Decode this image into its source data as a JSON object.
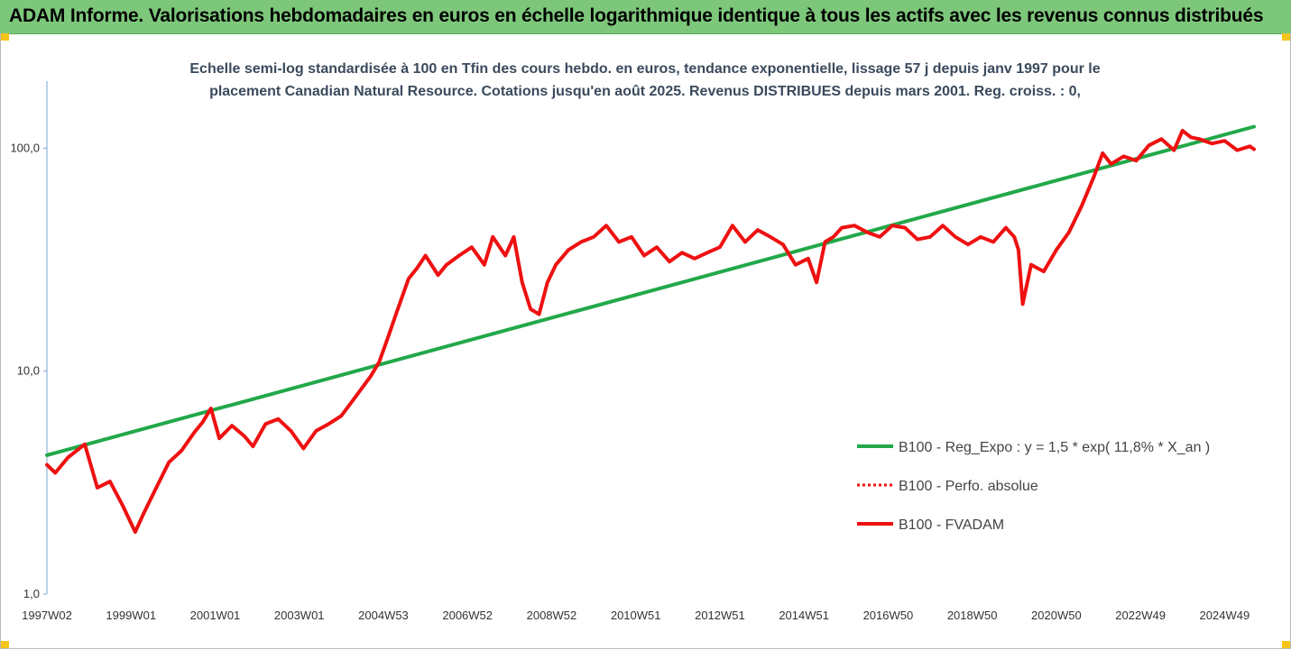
{
  "banner": {
    "title": "ADAM Informe. Valorisations hebdomadaires en euros en échelle logarithmique identique à tous les actifs avec les revenus connus distribués"
  },
  "chart_data": {
    "type": "line",
    "title_line1": "Echelle semi-log standardisée à 100 en Tfin des cours hebdo. en euros, tendance exponentielle, lissage 57 j depuis janv 1997 pour le",
    "title_line2": "placement Canadian Natural Resource. Cotations jusqu'en août 2025. Revenus DISTRIBUES depuis mars 2001. Reg. croiss. : 0,",
    "y_scale": "log",
    "ylim": [
      1,
      200
    ],
    "y_ticks": [
      1,
      10,
      100
    ],
    "y_tick_labels": [
      "1,0",
      "10,0",
      "100,0"
    ],
    "xlim": [
      1997.0,
      2025.7
    ],
    "x_ticks": [
      1997.0,
      1999.0,
      2001.0,
      2003.0,
      2005.0,
      2007.0,
      2009.0,
      2011.0,
      2013.0,
      2015.0,
      2017.0,
      2019.0,
      2021.0,
      2023.0,
      2025.0
    ],
    "x_tick_labels": [
      "1997W02",
      "1999W01",
      "2001W01",
      "2003W01",
      "2004W53",
      "2006W52",
      "2008W52",
      "2010W51",
      "2012W51",
      "2014W51",
      "2016W50",
      "2018W50",
      "2020W50",
      "2022W49",
      "2024W49"
    ],
    "grid": false,
    "legend_position": "right-middle",
    "series": [
      {
        "name": "B100 - Reg_Expo : y = 1,5 * exp( 11,8% *  X_an )",
        "color": "#22a84a",
        "style": "solid",
        "x": [
          1997.0,
          2025.7
        ],
        "y": [
          4.2,
          125
        ]
      },
      {
        "name": "B100 - Perfo. absolue",
        "color": "#ee1111",
        "style": "dotted",
        "x": [],
        "y": []
      },
      {
        "name": "B100 - FVADAM",
        "color": "#ee1111",
        "style": "solid",
        "x": [
          1997.0,
          1997.2,
          1997.5,
          1997.9,
          1998.2,
          1998.5,
          1998.8,
          1999.1,
          1999.3,
          1999.6,
          1999.9,
          2000.2,
          2000.5,
          2000.7,
          2000.9,
          2001.1,
          2001.4,
          2001.7,
          2001.9,
          2002.2,
          2002.5,
          2002.8,
          2003.1,
          2003.4,
          2003.7,
          2004.0,
          2004.3,
          2004.7,
          2004.9,
          2005.1,
          2005.3,
          2005.6,
          2005.8,
          2006.0,
          2006.3,
          2006.5,
          2006.8,
          2007.1,
          2007.4,
          2007.6,
          2007.9,
          2008.1,
          2008.3,
          2008.5,
          2008.7,
          2008.9,
          2009.1,
          2009.4,
          2009.7,
          2010.0,
          2010.3,
          2010.6,
          2010.9,
          2011.2,
          2011.5,
          2011.8,
          2012.1,
          2012.4,
          2012.7,
          2013.0,
          2013.3,
          2013.6,
          2013.9,
          2014.2,
          2014.5,
          2014.8,
          2015.1,
          2015.3,
          2015.5,
          2015.7,
          2015.9,
          2016.2,
          2016.5,
          2016.8,
          2017.1,
          2017.4,
          2017.7,
          2018.0,
          2018.3,
          2018.6,
          2018.9,
          2019.2,
          2019.5,
          2019.8,
          2020.0,
          2020.1,
          2020.2,
          2020.4,
          2020.7,
          2021.0,
          2021.3,
          2021.6,
          2021.9,
          2022.1,
          2022.3,
          2022.6,
          2022.9,
          2023.2,
          2023.5,
          2023.8,
          2024.0,
          2024.2,
          2024.4,
          2024.7,
          2025.0,
          2025.3,
          2025.6,
          2025.7
        ],
        "y": [
          3.8,
          3.5,
          4.1,
          4.7,
          3.0,
          3.2,
          2.5,
          1.9,
          2.3,
          3.0,
          3.9,
          4.4,
          5.3,
          5.9,
          6.8,
          5.0,
          5.7,
          5.1,
          4.6,
          5.8,
          6.1,
          5.4,
          4.5,
          5.4,
          5.8,
          6.3,
          7.5,
          9.5,
          11.0,
          14.0,
          18.0,
          26.0,
          29.0,
          33.0,
          27.0,
          30.0,
          33.0,
          36.0,
          30.0,
          40.0,
          33.0,
          40.0,
          25.0,
          19.0,
          18.0,
          25.0,
          30.0,
          35.0,
          38.0,
          40.0,
          45.0,
          38.0,
          40.0,
          33.0,
          36.0,
          31.0,
          34.0,
          32.0,
          34.0,
          36.0,
          45.0,
          38.0,
          43.0,
          40.0,
          37.0,
          30.0,
          32.0,
          25.0,
          38.0,
          40.0,
          44.0,
          45.0,
          42.0,
          40.0,
          45.0,
          44.0,
          39.0,
          40.0,
          45.0,
          40.0,
          37.0,
          40.0,
          38.0,
          44.0,
          40.0,
          35.0,
          20.0,
          30.0,
          28.0,
          35.0,
          42.0,
          55.0,
          75.0,
          95.0,
          85.0,
          92.0,
          88.0,
          103.0,
          110.0,
          98.0,
          120.0,
          112.0,
          110.0,
          105.0,
          108.0,
          98.0,
          102.0,
          99.0
        ]
      }
    ]
  }
}
